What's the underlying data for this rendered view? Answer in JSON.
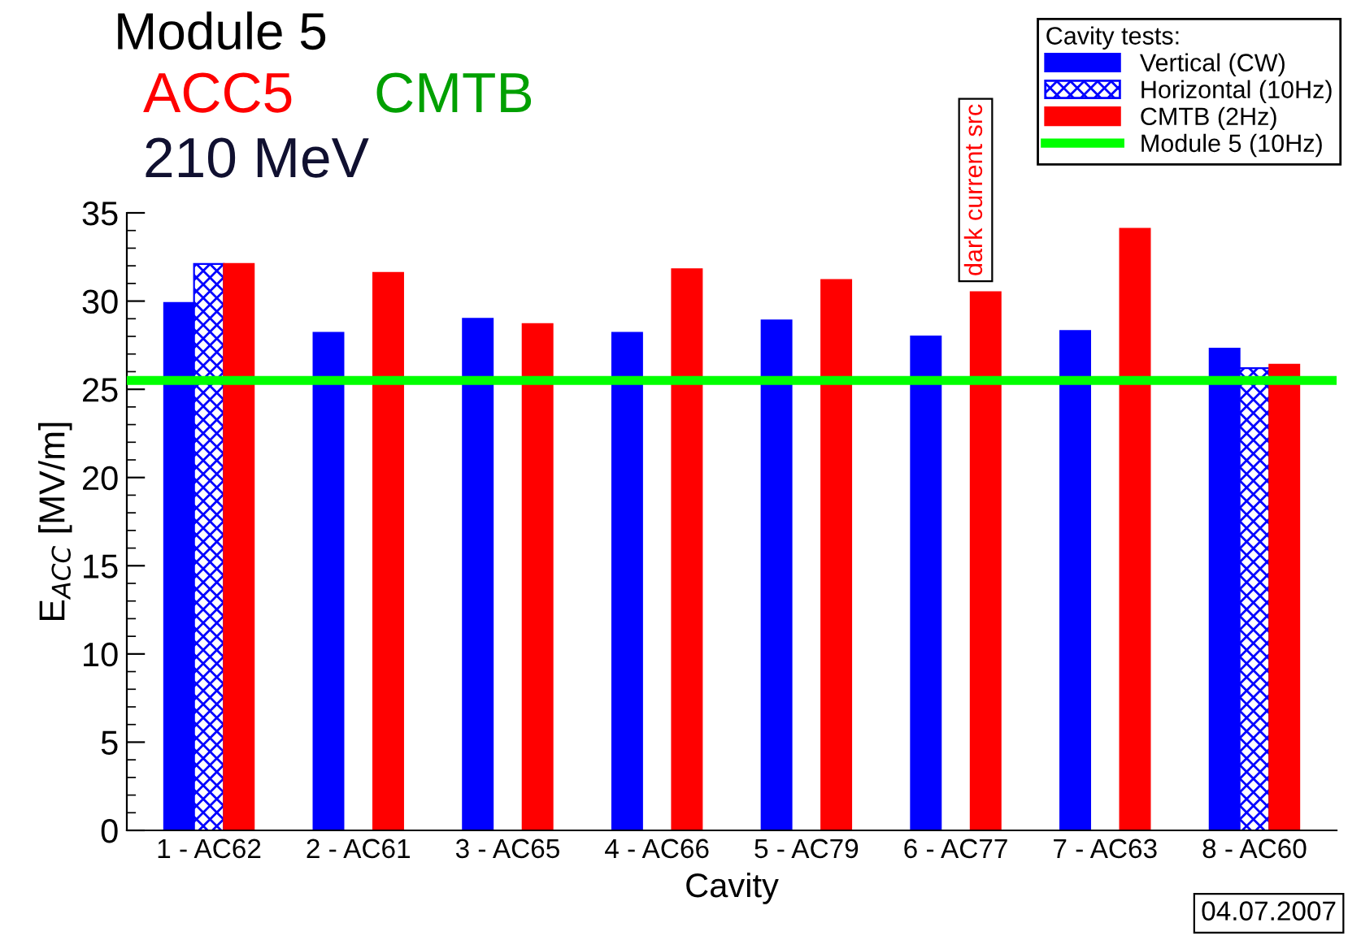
{
  "chart_data": {
    "type": "bar",
    "title": "Module 5",
    "xlabel": "Cavity",
    "ylabel": "E$_{ACC}$ [MV/m]",
    "legend_title": "Cavity tests:",
    "categories": [
      "1 - AC62",
      "2 - AC61",
      "3 - AC65",
      "4 - AC66",
      "5 - AC79",
      "6 - AC77",
      "7 - AC63",
      "8 - AC60"
    ],
    "series": [
      {
        "name": "Vertical (CW)",
        "color": "#0000ff",
        "values": [
          29.9,
          28.2,
          29.0,
          28.2,
          28.9,
          28.0,
          28.3,
          27.3
        ]
      },
      {
        "name": "Horizontal (10Hz)",
        "color": "#0000ff",
        "values": [
          32.1,
          null,
          null,
          null,
          null,
          null,
          null,
          26.2
        ]
      },
      {
        "name": "CMTB (2Hz)",
        "color": "#ff0000",
        "values": [
          32.1,
          31.6,
          28.7,
          31.8,
          31.2,
          30.5,
          34.1,
          26.4
        ]
      }
    ],
    "ref_lines": [
      {
        "axis": "y",
        "value": 25.5,
        "label": "Module 5 (10Hz)",
        "color": "#00ff00"
      }
    ],
    "ylim": [
      0,
      35
    ],
    "yticks": [
      0,
      {
        "value": 1,
        "label": null
      },
      {
        "value": 2,
        "label": null
      },
      {
        "value": 3,
        "label": null
      },
      {
        "value": 4,
        "label": null
      },
      5,
      {
        "value": 6,
        "label": null
      },
      {
        "value": 7,
        "label": null
      },
      {
        "value": 8,
        "label": null
      },
      {
        "value": 9,
        "label": null
      },
      10,
      {
        "value": 11,
        "label": null
      },
      {
        "value": 12,
        "label": null
      },
      {
        "value": 13,
        "label": null
      },
      {
        "value": 14,
        "label": null
      },
      15,
      {
        "value": 16,
        "label": null
      },
      {
        "value": 17,
        "label": null
      },
      {
        "value": 18,
        "label": null
      },
      {
        "value": 19,
        "label": null
      },
      20,
      {
        "value": 21,
        "label": null
      },
      {
        "value": 22,
        "label": null
      },
      {
        "value": 23,
        "label": null
      },
      {
        "value": 24,
        "label": null
      },
      25,
      {
        "value": 26,
        "label": null
      },
      {
        "value": 27,
        "label": null
      },
      {
        "value": 28,
        "label": null
      },
      {
        "value": 29,
        "label": null
      },
      30,
      {
        "value": 31,
        "label": null
      },
      {
        "value": 32,
        "label": null
      },
      {
        "value": 33,
        "label": null
      },
      {
        "value": 34,
        "label": null
      },
      35
    ],
    "grid": false,
    "legend": "top right",
    "annotations": [
      "ACC5",
      "CMTB",
      "210 MeV",
      "04.07.2007",
      "dark current src"
    ]
  }
}
